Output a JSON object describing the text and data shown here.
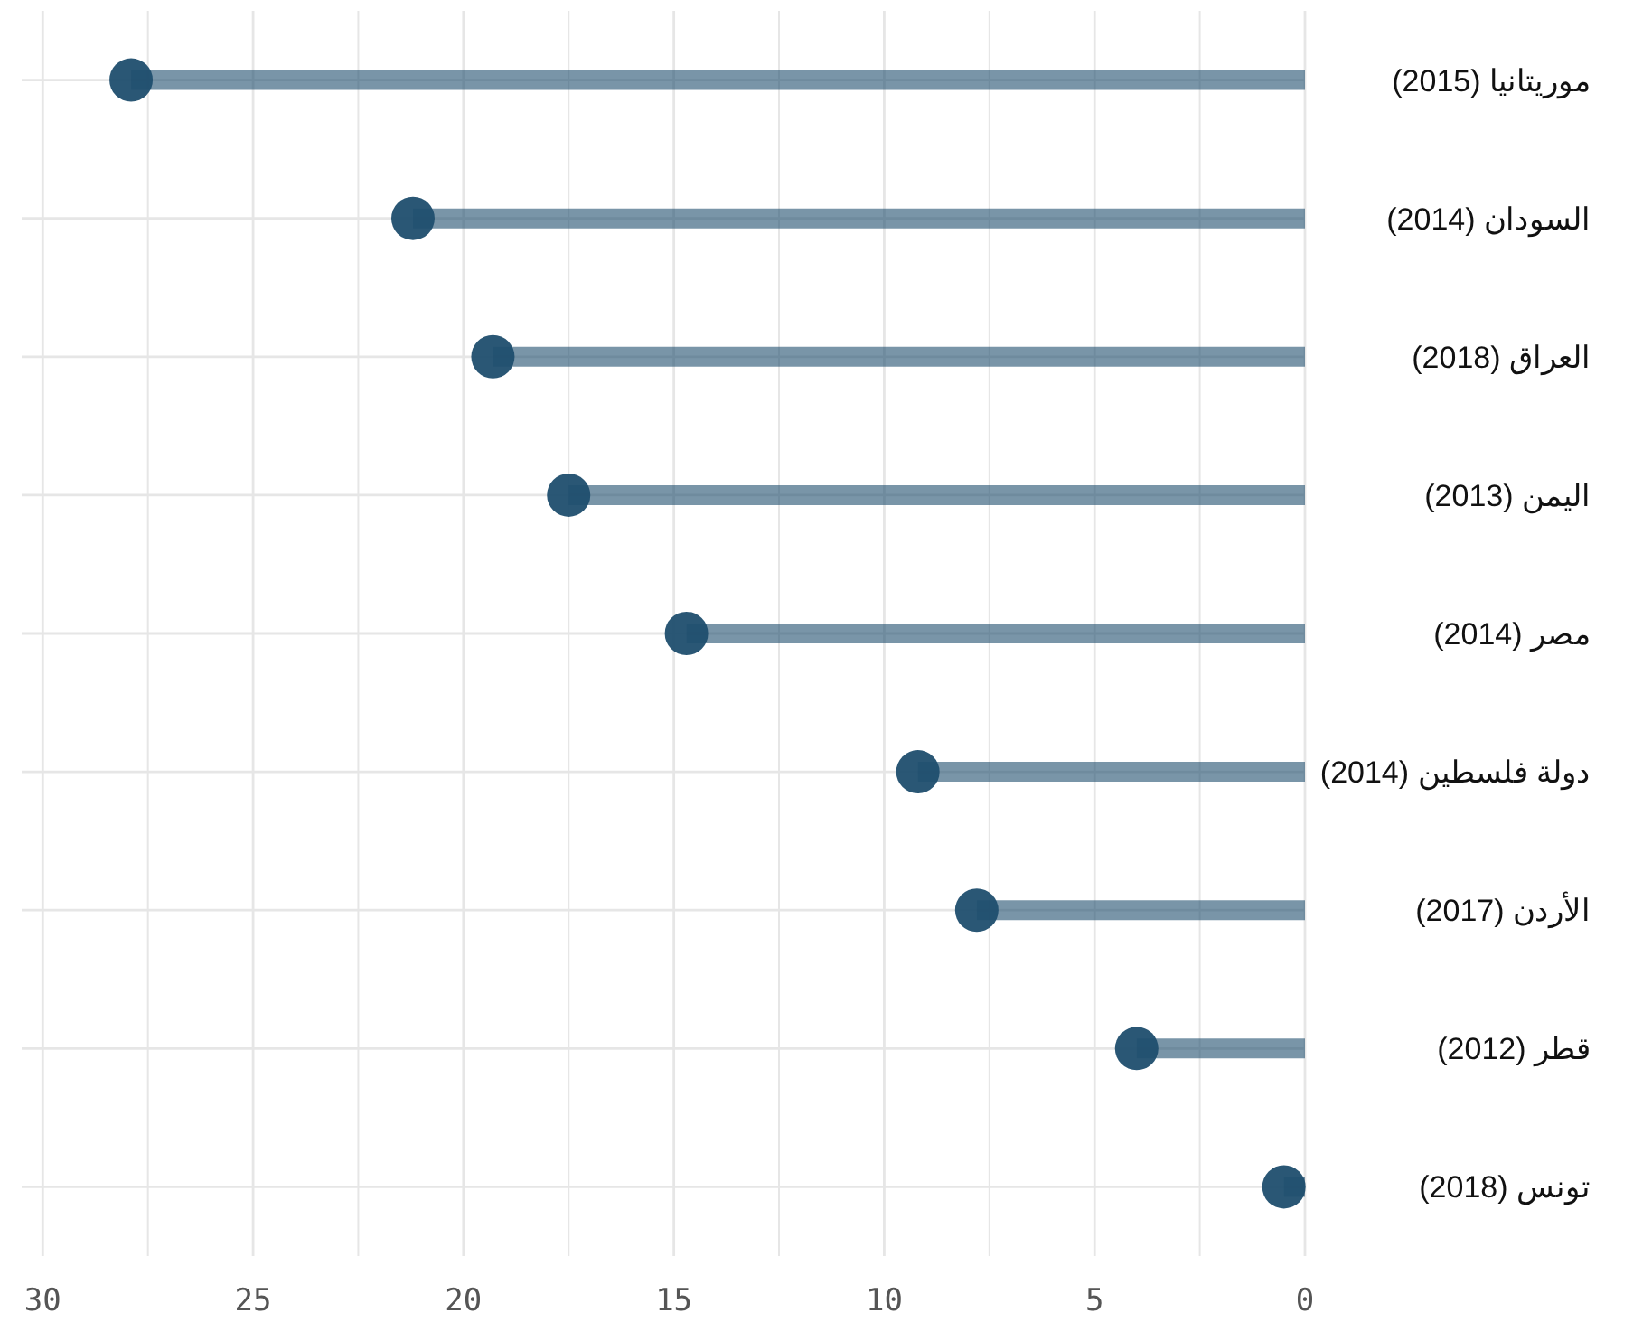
{
  "chart_data": {
    "type": "lollipop",
    "orientation": "horizontal",
    "categories": [
      "موريتانيا (2015)",
      "السودان (2014)",
      "العراق (2018)",
      "اليمن (2013)",
      "مصر (2014)",
      "دولة فلسطين (2014)",
      "الأردن (2017)",
      "قطر (2012)",
      "تونس (2018)"
    ],
    "values": [
      27.9,
      21.2,
      19.3,
      17.5,
      14.7,
      9.2,
      7.8,
      4.0,
      0.5
    ],
    "color": "#1f4e6e",
    "xlim": [
      30.5,
      0
    ],
    "xticks": [
      30,
      25,
      20,
      15,
      10,
      5,
      0,
      {
        "value": 27.5,
        "label": null
      },
      {
        "value": 22.5,
        "label": null
      },
      {
        "value": 17.5,
        "label": null
      },
      {
        "value": 12.5,
        "label": null
      },
      {
        "value": 7.5,
        "label": null
      },
      {
        "value": 2.5,
        "label": null
      }
    ],
    "grid": true
  }
}
